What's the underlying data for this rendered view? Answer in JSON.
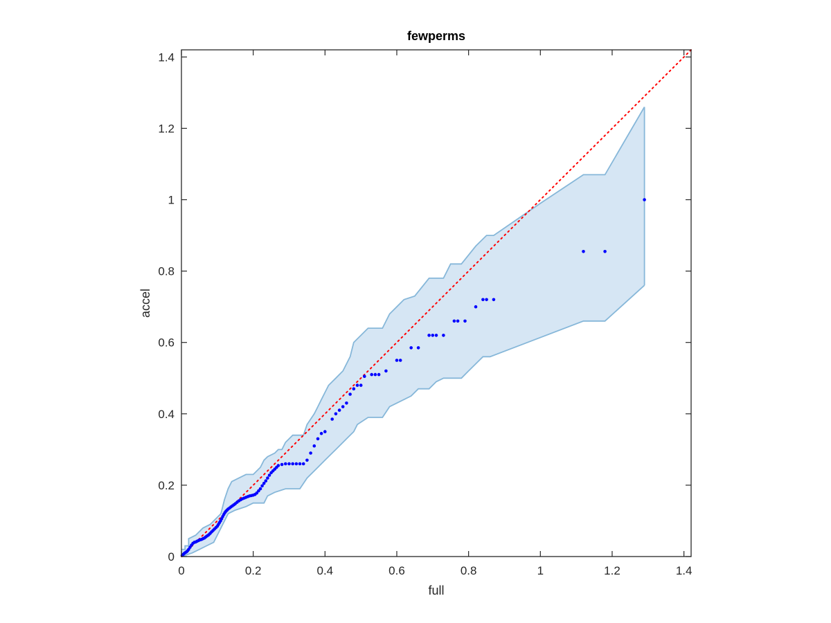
{
  "chart_data": {
    "type": "scatter",
    "title": "fewperms",
    "xlabel": "full",
    "ylabel": "accel",
    "xlim": [
      0,
      1.42
    ],
    "ylim": [
      0,
      1.42
    ],
    "xticks": [
      0,
      0.2,
      0.4,
      0.6,
      0.8,
      1,
      1.2,
      1.4
    ],
    "yticks": [
      0,
      0.2,
      0.4,
      0.6,
      0.8,
      1,
      1.2,
      1.4
    ],
    "xtick_labels": [
      "0",
      "0.2",
      "0.4",
      "0.6",
      "0.8",
      "1",
      "1.2",
      "1.4"
    ],
    "ytick_labels": [
      "0",
      "0.2",
      "0.4",
      "0.6",
      "0.8",
      "1",
      "1.2",
      "1.4"
    ],
    "grid": false,
    "reference_line": {
      "style": "dotted",
      "color": "#ff0000",
      "from": [
        0,
        0
      ],
      "to": [
        1.42,
        1.42
      ]
    },
    "band": {
      "color": "#d6e6f4",
      "edge_color": "#86b7d9",
      "upper": [
        [
          0,
          0.02
        ],
        [
          0.01,
          0.02
        ],
        [
          0.01,
          0.03
        ],
        [
          0.02,
          0.03
        ],
        [
          0.02,
          0.05
        ],
        [
          0.04,
          0.06
        ],
        [
          0.05,
          0.07
        ],
        [
          0.06,
          0.08
        ],
        [
          0.08,
          0.09
        ],
        [
          0.09,
          0.1
        ],
        [
          0.11,
          0.12
        ],
        [
          0.12,
          0.16
        ],
        [
          0.13,
          0.19
        ],
        [
          0.14,
          0.21
        ],
        [
          0.16,
          0.22
        ],
        [
          0.18,
          0.23
        ],
        [
          0.2,
          0.23
        ],
        [
          0.22,
          0.25
        ],
        [
          0.23,
          0.27
        ],
        [
          0.24,
          0.28
        ],
        [
          0.26,
          0.29
        ],
        [
          0.27,
          0.3
        ],
        [
          0.28,
          0.3
        ],
        [
          0.29,
          0.32
        ],
        [
          0.3,
          0.33
        ],
        [
          0.31,
          0.34
        ],
        [
          0.34,
          0.34
        ],
        [
          0.35,
          0.37
        ],
        [
          0.37,
          0.4
        ],
        [
          0.38,
          0.42
        ],
        [
          0.39,
          0.44
        ],
        [
          0.4,
          0.46
        ],
        [
          0.41,
          0.48
        ],
        [
          0.43,
          0.5
        ],
        [
          0.45,
          0.52
        ],
        [
          0.47,
          0.56
        ],
        [
          0.48,
          0.6
        ],
        [
          0.5,
          0.62
        ],
        [
          0.52,
          0.64
        ],
        [
          0.56,
          0.64
        ],
        [
          0.58,
          0.68
        ],
        [
          0.6,
          0.7
        ],
        [
          0.62,
          0.72
        ],
        [
          0.65,
          0.73
        ],
        [
          0.69,
          0.78
        ],
        [
          0.73,
          0.78
        ],
        [
          0.75,
          0.82
        ],
        [
          0.78,
          0.82
        ],
        [
          0.82,
          0.87
        ],
        [
          0.85,
          0.9
        ],
        [
          0.87,
          0.9
        ],
        [
          1.0,
          0.99
        ],
        [
          1.12,
          1.07
        ],
        [
          1.18,
          1.07
        ],
        [
          1.29,
          1.26
        ]
      ],
      "lower": [
        [
          0,
          0
        ],
        [
          0.03,
          0.01
        ],
        [
          0.05,
          0.02
        ],
        [
          0.07,
          0.03
        ],
        [
          0.09,
          0.04
        ],
        [
          0.1,
          0.06
        ],
        [
          0.11,
          0.08
        ],
        [
          0.12,
          0.1
        ],
        [
          0.13,
          0.12
        ],
        [
          0.15,
          0.13
        ],
        [
          0.18,
          0.14
        ],
        [
          0.2,
          0.15
        ],
        [
          0.23,
          0.15
        ],
        [
          0.24,
          0.17
        ],
        [
          0.26,
          0.18
        ],
        [
          0.29,
          0.19
        ],
        [
          0.33,
          0.19
        ],
        [
          0.35,
          0.22
        ],
        [
          0.38,
          0.25
        ],
        [
          0.4,
          0.27
        ],
        [
          0.43,
          0.3
        ],
        [
          0.46,
          0.33
        ],
        [
          0.48,
          0.35
        ],
        [
          0.49,
          0.37
        ],
        [
          0.52,
          0.39
        ],
        [
          0.56,
          0.39
        ],
        [
          0.58,
          0.42
        ],
        [
          0.6,
          0.43
        ],
        [
          0.64,
          0.45
        ],
        [
          0.66,
          0.47
        ],
        [
          0.69,
          0.47
        ],
        [
          0.71,
          0.49
        ],
        [
          0.73,
          0.5
        ],
        [
          0.78,
          0.5
        ],
        [
          0.8,
          0.52
        ],
        [
          0.82,
          0.54
        ],
        [
          0.84,
          0.56
        ],
        [
          0.86,
          0.56
        ],
        [
          1.12,
          0.66
        ],
        [
          1.18,
          0.66
        ],
        [
          1.29,
          0.76
        ]
      ]
    },
    "series": [
      {
        "marker_color": "#0000ff",
        "x": [
          0.002,
          0.005,
          0.008,
          0.011,
          0.014,
          0.017,
          0.02,
          0.024,
          0.028,
          0.032,
          0.036,
          0.04,
          0.044,
          0.048,
          0.052,
          0.056,
          0.06,
          0.064,
          0.068,
          0.072,
          0.076,
          0.08,
          0.084,
          0.088,
          0.092,
          0.096,
          0.1,
          0.103,
          0.106,
          0.109,
          0.112,
          0.115,
          0.118,
          0.121,
          0.124,
          0.127,
          0.13,
          0.134,
          0.138,
          0.142,
          0.146,
          0.15,
          0.155,
          0.16,
          0.165,
          0.17,
          0.175,
          0.18,
          0.185,
          0.19,
          0.195,
          0.2,
          0.205,
          0.21,
          0.215,
          0.22,
          0.225,
          0.23,
          0.235,
          0.24,
          0.245,
          0.25,
          0.255,
          0.26,
          0.265,
          0.27,
          0.28,
          0.29,
          0.3,
          0.31,
          0.32,
          0.33,
          0.34,
          0.35,
          0.36,
          0.37,
          0.38,
          0.39,
          0.4,
          0.42,
          0.43,
          0.44,
          0.45,
          0.46,
          0.47,
          0.48,
          0.49,
          0.5,
          0.51,
          0.53,
          0.54,
          0.55,
          0.57,
          0.6,
          0.61,
          0.64,
          0.66,
          0.69,
          0.7,
          0.71,
          0.73,
          0.76,
          0.77,
          0.79,
          0.82,
          0.84,
          0.85,
          0.87,
          1.12,
          1.18,
          1.29
        ],
        "y": [
          0.003,
          0.006,
          0.009,
          0.011,
          0.013,
          0.016,
          0.02,
          0.026,
          0.032,
          0.037,
          0.04,
          0.041,
          0.043,
          0.045,
          0.047,
          0.048,
          0.05,
          0.052,
          0.055,
          0.058,
          0.061,
          0.065,
          0.069,
          0.073,
          0.077,
          0.081,
          0.085,
          0.09,
          0.095,
          0.1,
          0.106,
          0.112,
          0.118,
          0.123,
          0.127,
          0.13,
          0.133,
          0.136,
          0.139,
          0.142,
          0.145,
          0.148,
          0.152,
          0.156,
          0.159,
          0.162,
          0.164,
          0.166,
          0.168,
          0.17,
          0.171,
          0.172,
          0.174,
          0.178,
          0.184,
          0.19,
          0.198,
          0.205,
          0.212,
          0.22,
          0.228,
          0.235,
          0.24,
          0.245,
          0.25,
          0.255,
          0.258,
          0.26,
          0.26,
          0.26,
          0.26,
          0.26,
          0.26,
          0.27,
          0.29,
          0.31,
          0.33,
          0.345,
          0.35,
          0.385,
          0.4,
          0.41,
          0.42,
          0.43,
          0.455,
          0.47,
          0.48,
          0.48,
          0.505,
          0.51,
          0.51,
          0.51,
          0.52,
          0.55,
          0.55,
          0.585,
          0.585,
          0.62,
          0.62,
          0.62,
          0.62,
          0.66,
          0.66,
          0.66,
          0.7,
          0.72,
          0.72,
          0.72,
          0.855,
          0.855,
          1.0
        ]
      }
    ]
  }
}
